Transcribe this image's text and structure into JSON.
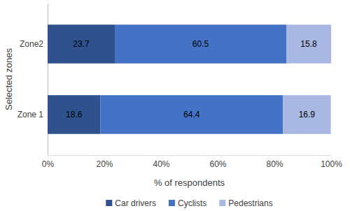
{
  "chart_data": {
    "type": "bar",
    "orientation": "horizontal",
    "stacked": true,
    "data_labels": true,
    "grid": false,
    "legend": "bottom",
    "x_label": "% of respondents",
    "y_label": "Selected zones",
    "categories": [
      "Zone 1",
      "Zone2"
    ],
    "series": [
      {
        "name": "Car drivers",
        "color": "#2f528f",
        "values": [
          18.6,
          23.7
        ]
      },
      {
        "name": "Cyclists",
        "color": "#4472c4",
        "values": [
          64.4,
          60.5
        ]
      },
      {
        "name": "Pedestrians",
        "color": "#a9b8e2",
        "values": [
          16.9,
          15.8
        ]
      }
    ],
    "xlim": [
      0,
      100
    ],
    "xticks": [
      {
        "value": 0,
        "label": "0%"
      },
      {
        "value": 20,
        "label": "20%"
      },
      {
        "value": 40,
        "label": "40%"
      },
      {
        "value": 60,
        "label": "60%"
      },
      {
        "value": 80,
        "label": "80%"
      },
      {
        "value": 100,
        "label": "100%"
      }
    ]
  }
}
